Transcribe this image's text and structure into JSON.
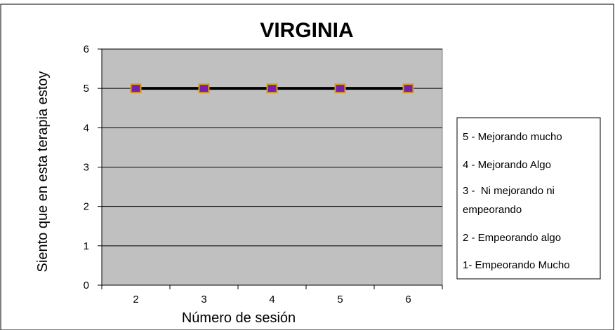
{
  "chart_data": {
    "type": "line",
    "title": "VIRGINIA",
    "xlabel": "Número de sesión",
    "ylabel": "Siento que en esta terapia estoy",
    "x": [
      2,
      3,
      4,
      5,
      6
    ],
    "series": [
      {
        "values": [
          5,
          5,
          5,
          5,
          5
        ]
      }
    ],
    "x_tick_labels": [
      "2",
      "3",
      "4",
      "5",
      "6"
    ],
    "y_ticks": [
      0,
      1,
      2,
      3,
      4,
      5,
      6
    ],
    "y_tick_labels": [
      "0",
      "1",
      "2",
      "3",
      "4",
      "5",
      "6"
    ],
    "ylim": [
      0,
      6
    ],
    "grid": true,
    "legend_placement": "right",
    "legend_lines": [
      "5 - Mejorando mucho",
      "4 - Mejorando Algo",
      "3 -  Ni mejorando ni",
      "empeorando",
      "2 - Empeorando algo",
      "1- Empeorando Mucho"
    ],
    "colors": {
      "plot_background": "#c0c0c0",
      "line": "#000000",
      "marker_fill": "#7a1fa8",
      "marker_edge": "#d4a017"
    }
  }
}
